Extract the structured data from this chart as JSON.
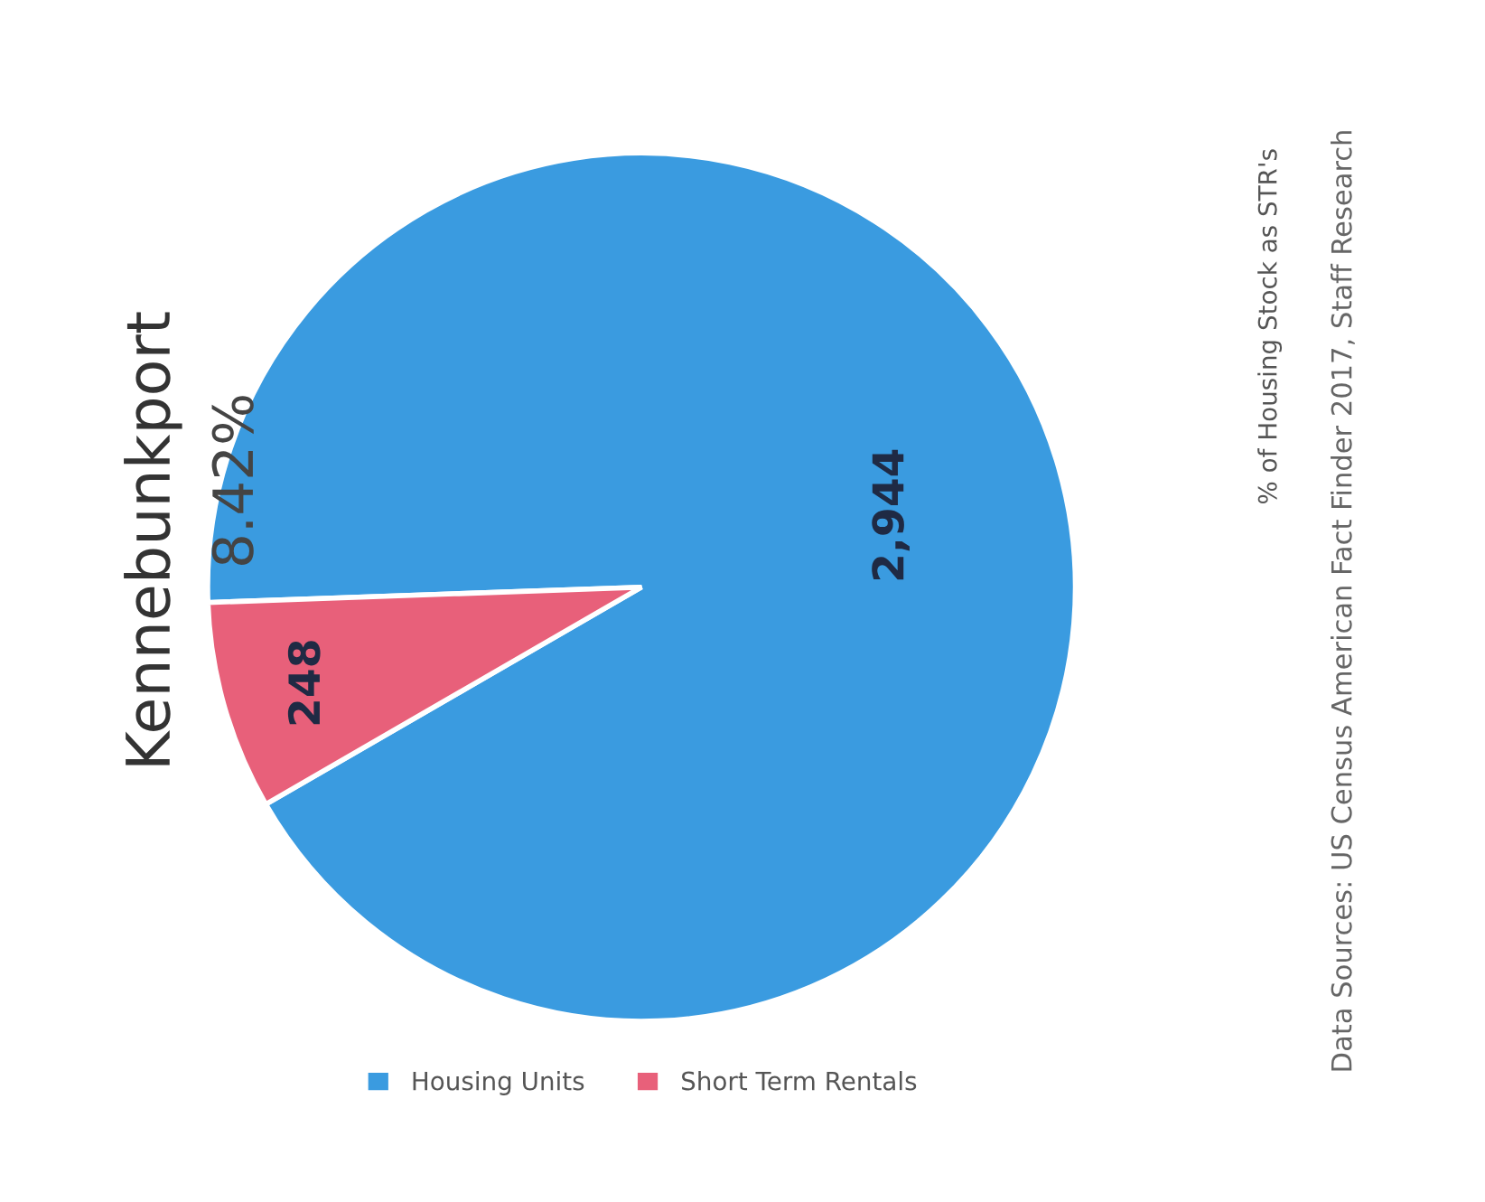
{
  "chart_data": {
    "type": "pie",
    "title": "Kennebunkport",
    "categories": [
      "Housing Units",
      "Short Term Rentals"
    ],
    "values": [
      2944,
      248
    ],
    "value_labels": [
      "2,944",
      "248"
    ],
    "colors": [
      "#3a9be0",
      "#e8607a"
    ],
    "legend": "bottom",
    "annotations": [
      "% of Housing Stock as STR's",
      "8.42%",
      "Data Sources: US Census American Fact Finder 2017, Staff Research"
    ]
  }
}
